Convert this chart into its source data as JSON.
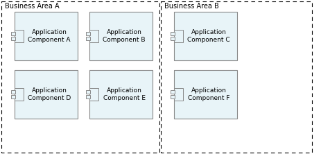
{
  "bg_color": "#ffffff",
  "component_fill": "#e8f4f8",
  "component_stroke": "#888888",
  "icon_fill": "#e8f4f8",
  "icon_stroke": "#888888",
  "area_a_label": "Business Area A",
  "area_b_label": "Business Area B",
  "components": [
    {
      "label": "Application\nComponent A",
      "col": 0,
      "row": 0
    },
    {
      "label": "Application\nComponent B",
      "col": 1,
      "row": 0
    },
    {
      "label": "Application\nComponent C",
      "col": 2,
      "row": 0
    },
    {
      "label": "Application\nComponent D",
      "col": 0,
      "row": 1
    },
    {
      "label": "Application\nComponent E",
      "col": 1,
      "row": 1
    },
    {
      "label": "Application\nComponent F",
      "col": 2,
      "row": 1
    }
  ],
  "font_size_label": 6.5,
  "font_size_area": 7.0,
  "fig_width": 4.63,
  "fig_height": 2.22,
  "dpi": 100
}
